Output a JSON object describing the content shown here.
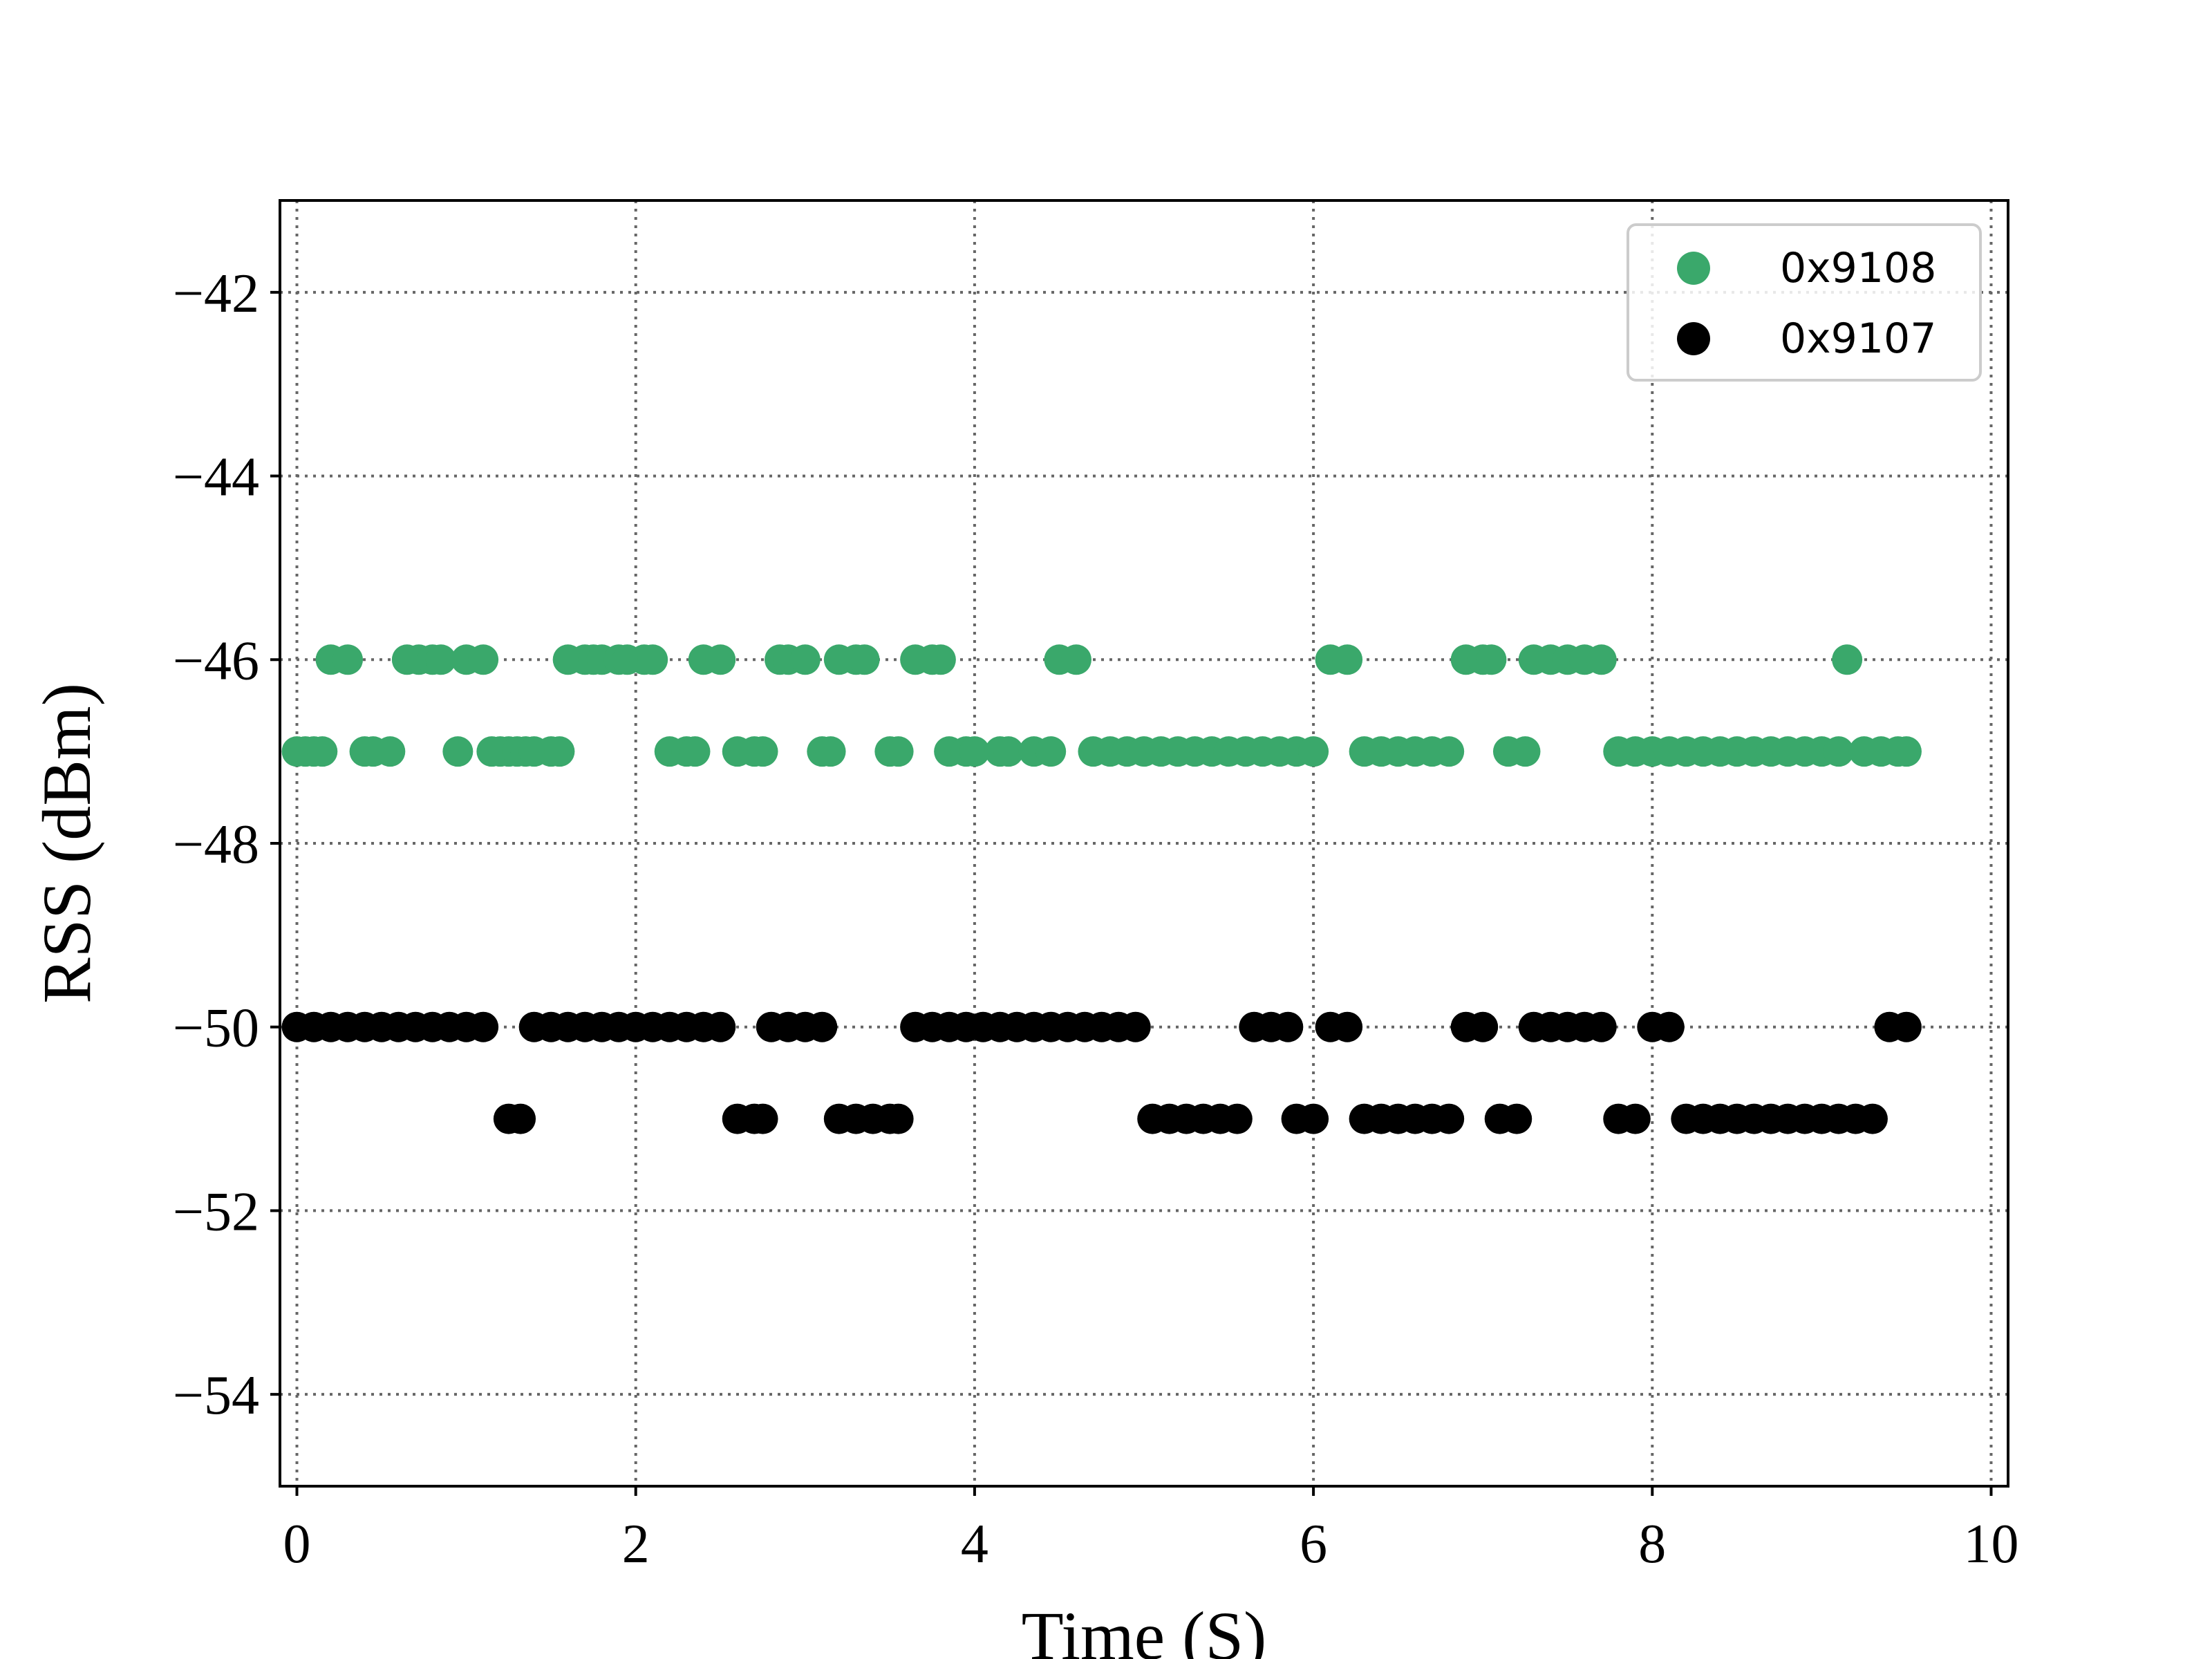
{
  "chart_data": {
    "type": "scatter",
    "title": "",
    "xlabel": "Time (S)",
    "ylabel": "RSS (dBm)",
    "xlim": [
      -0.1,
      10.1
    ],
    "ylim": [
      -55,
      -41
    ],
    "xticks": [
      0,
      2,
      4,
      6,
      8,
      10
    ],
    "yticks": [
      -54,
      -52,
      -50,
      -48,
      -46,
      -44,
      -42
    ],
    "xtick_labels": [
      "0",
      "2",
      "4",
      "6",
      "8",
      "10"
    ],
    "ytick_labels": [
      "−54",
      "−52",
      "−50",
      "−48",
      "−46",
      "−44",
      "−42"
    ],
    "grid": true,
    "legend_position": "top-right",
    "series": [
      {
        "name": "0x9108",
        "color": "#3aa86b",
        "points": [
          [
            0.0,
            -47
          ],
          [
            0.05,
            -47
          ],
          [
            0.1,
            -47
          ],
          [
            0.15,
            -47
          ],
          [
            0.2,
            -46
          ],
          [
            0.3,
            -46
          ],
          [
            0.4,
            -47
          ],
          [
            0.45,
            -47
          ],
          [
            0.55,
            -47
          ],
          [
            0.65,
            -46
          ],
          [
            0.72,
            -46
          ],
          [
            0.8,
            -46
          ],
          [
            0.85,
            -46
          ],
          [
            1.0,
            -46
          ],
          [
            1.1,
            -46
          ],
          [
            0.95,
            -47
          ],
          [
            1.15,
            -47
          ],
          [
            1.2,
            -47
          ],
          [
            1.25,
            -47
          ],
          [
            1.3,
            -47
          ],
          [
            1.35,
            -47
          ],
          [
            1.4,
            -47
          ],
          [
            1.5,
            -47
          ],
          [
            1.55,
            -47
          ],
          [
            1.6,
            -46
          ],
          [
            1.7,
            -46
          ],
          [
            1.75,
            -46
          ],
          [
            1.8,
            -46
          ],
          [
            1.9,
            -46
          ],
          [
            1.95,
            -46
          ],
          [
            2.05,
            -46
          ],
          [
            2.1,
            -46
          ],
          [
            2.2,
            -47
          ],
          [
            2.3,
            -47
          ],
          [
            2.35,
            -47
          ],
          [
            2.4,
            -46
          ],
          [
            2.5,
            -46
          ],
          [
            2.6,
            -47
          ],
          [
            2.7,
            -47
          ],
          [
            2.75,
            -47
          ],
          [
            2.85,
            -46
          ],
          [
            2.9,
            -46
          ],
          [
            3.0,
            -46
          ],
          [
            3.1,
            -47
          ],
          [
            3.15,
            -47
          ],
          [
            3.2,
            -46
          ],
          [
            3.3,
            -46
          ],
          [
            3.35,
            -46
          ],
          [
            3.5,
            -47
          ],
          [
            3.55,
            -47
          ],
          [
            3.65,
            -46
          ],
          [
            3.75,
            -46
          ],
          [
            3.8,
            -46
          ],
          [
            3.85,
            -47
          ],
          [
            3.95,
            -47
          ],
          [
            4.0,
            -47
          ],
          [
            4.15,
            -47
          ],
          [
            4.2,
            -47
          ],
          [
            4.35,
            -47
          ],
          [
            4.45,
            -47
          ],
          [
            4.5,
            -46
          ],
          [
            4.6,
            -46
          ],
          [
            4.7,
            -47
          ],
          [
            4.8,
            -47
          ],
          [
            4.9,
            -47
          ],
          [
            5.0,
            -47
          ],
          [
            5.1,
            -47
          ],
          [
            5.2,
            -47
          ],
          [
            5.3,
            -47
          ],
          [
            5.4,
            -47
          ],
          [
            5.5,
            -47
          ],
          [
            5.6,
            -47
          ],
          [
            5.7,
            -47
          ],
          [
            5.8,
            -47
          ],
          [
            5.9,
            -47
          ],
          [
            6.0,
            -47
          ],
          [
            6.1,
            -46
          ],
          [
            6.2,
            -46
          ],
          [
            6.3,
            -47
          ],
          [
            6.4,
            -47
          ],
          [
            6.5,
            -47
          ],
          [
            6.6,
            -47
          ],
          [
            6.7,
            -47
          ],
          [
            6.8,
            -47
          ],
          [
            6.9,
            -46
          ],
          [
            7.0,
            -46
          ],
          [
            7.05,
            -46
          ],
          [
            7.15,
            -47
          ],
          [
            7.25,
            -47
          ],
          [
            7.3,
            -46
          ],
          [
            7.4,
            -46
          ],
          [
            7.5,
            -46
          ],
          [
            7.6,
            -46
          ],
          [
            7.7,
            -46
          ],
          [
            7.8,
            -47
          ],
          [
            7.9,
            -47
          ],
          [
            8.0,
            -47
          ],
          [
            8.1,
            -47
          ],
          [
            8.2,
            -47
          ],
          [
            8.3,
            -47
          ],
          [
            8.4,
            -47
          ],
          [
            8.5,
            -47
          ],
          [
            8.6,
            -47
          ],
          [
            8.7,
            -47
          ],
          [
            8.8,
            -47
          ],
          [
            8.9,
            -47
          ],
          [
            9.0,
            -47
          ],
          [
            9.1,
            -47
          ],
          [
            9.15,
            -46
          ],
          [
            9.25,
            -47
          ],
          [
            9.35,
            -47
          ],
          [
            9.45,
            -47
          ],
          [
            9.5,
            -47
          ]
        ]
      },
      {
        "name": "0x9107",
        "color": "#000000",
        "points": [
          [
            0.0,
            -50
          ],
          [
            0.1,
            -50
          ],
          [
            0.2,
            -50
          ],
          [
            0.3,
            -50
          ],
          [
            0.4,
            -50
          ],
          [
            0.5,
            -50
          ],
          [
            0.6,
            -50
          ],
          [
            0.7,
            -50
          ],
          [
            0.8,
            -50
          ],
          [
            0.9,
            -50
          ],
          [
            1.0,
            -50
          ],
          [
            1.1,
            -50
          ],
          [
            1.25,
            -51
          ],
          [
            1.32,
            -51
          ],
          [
            1.4,
            -50
          ],
          [
            1.5,
            -50
          ],
          [
            1.6,
            -50
          ],
          [
            1.7,
            -50
          ],
          [
            1.8,
            -50
          ],
          [
            1.9,
            -50
          ],
          [
            2.0,
            -50
          ],
          [
            2.1,
            -50
          ],
          [
            2.2,
            -50
          ],
          [
            2.3,
            -50
          ],
          [
            2.4,
            -50
          ],
          [
            2.5,
            -50
          ],
          [
            2.6,
            -51
          ],
          [
            2.7,
            -51
          ],
          [
            2.75,
            -51
          ],
          [
            2.8,
            -50
          ],
          [
            2.9,
            -50
          ],
          [
            3.0,
            -50
          ],
          [
            3.1,
            -50
          ],
          [
            3.2,
            -51
          ],
          [
            3.3,
            -51
          ],
          [
            3.4,
            -51
          ],
          [
            3.5,
            -51
          ],
          [
            3.55,
            -51
          ],
          [
            3.65,
            -50
          ],
          [
            3.75,
            -50
          ],
          [
            3.85,
            -50
          ],
          [
            3.95,
            -50
          ],
          [
            4.05,
            -50
          ],
          [
            4.15,
            -50
          ],
          [
            4.25,
            -50
          ],
          [
            4.35,
            -50
          ],
          [
            4.45,
            -50
          ],
          [
            4.55,
            -50
          ],
          [
            4.65,
            -50
          ],
          [
            4.75,
            -50
          ],
          [
            4.85,
            -50
          ],
          [
            4.95,
            -50
          ],
          [
            5.05,
            -51
          ],
          [
            5.15,
            -51
          ],
          [
            5.25,
            -51
          ],
          [
            5.35,
            -51
          ],
          [
            5.45,
            -51
          ],
          [
            5.55,
            -51
          ],
          [
            5.65,
            -50
          ],
          [
            5.75,
            -50
          ],
          [
            5.85,
            -50
          ],
          [
            5.9,
            -51
          ],
          [
            6.0,
            -51
          ],
          [
            6.1,
            -50
          ],
          [
            6.2,
            -50
          ],
          [
            6.3,
            -51
          ],
          [
            6.4,
            -51
          ],
          [
            6.5,
            -51
          ],
          [
            6.6,
            -51
          ],
          [
            6.7,
            -51
          ],
          [
            6.8,
            -51
          ],
          [
            6.9,
            -50
          ],
          [
            7.0,
            -50
          ],
          [
            7.1,
            -51
          ],
          [
            7.2,
            -51
          ],
          [
            7.3,
            -50
          ],
          [
            7.4,
            -50
          ],
          [
            7.5,
            -50
          ],
          [
            7.6,
            -50
          ],
          [
            7.7,
            -50
          ],
          [
            7.8,
            -51
          ],
          [
            7.9,
            -51
          ],
          [
            8.0,
            -50
          ],
          [
            8.1,
            -50
          ],
          [
            8.2,
            -51
          ],
          [
            8.3,
            -51
          ],
          [
            8.4,
            -51
          ],
          [
            8.5,
            -51
          ],
          [
            8.6,
            -51
          ],
          [
            8.7,
            -51
          ],
          [
            8.8,
            -51
          ],
          [
            8.9,
            -51
          ],
          [
            9.0,
            -51
          ],
          [
            9.1,
            -51
          ],
          [
            9.2,
            -51
          ],
          [
            9.3,
            -51
          ],
          [
            9.4,
            -50
          ],
          [
            9.5,
            -50
          ]
        ]
      }
    ]
  }
}
